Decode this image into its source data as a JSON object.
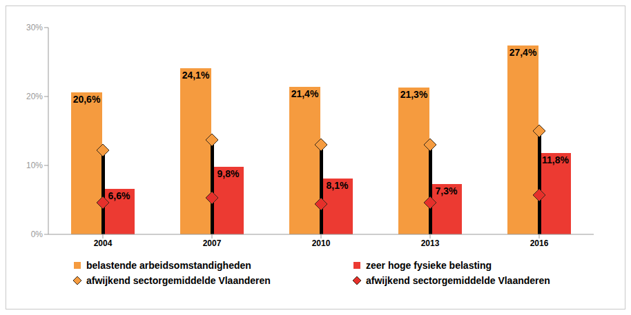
{
  "chart_data": {
    "type": "bar",
    "categories": [
      "2004",
      "2007",
      "2010",
      "2013",
      "2016"
    ],
    "series": [
      {
        "name": "belastende arbeidsomstandigheden",
        "type": "bar",
        "color": "#F59B3F",
        "values": [
          20.6,
          24.1,
          21.4,
          21.3,
          27.4
        ],
        "value_labels": [
          "20,6%",
          "24,1%",
          "21,4%",
          "21,3%",
          "27,4%"
        ]
      },
      {
        "name": "zeer hoge fysieke belasting",
        "type": "bar",
        "color": "#EC3A32",
        "values": [
          6.6,
          9.8,
          8.1,
          7.3,
          11.8
        ],
        "value_labels": [
          "6,6%",
          "9,8%",
          "8,1%",
          "7,3%",
          "11,8%"
        ]
      },
      {
        "name": "afwijkend sectorgemiddelde Vlaanderen",
        "type": "scatter",
        "marker": "diamond",
        "color": "#F59B3F",
        "values": [
          12.2,
          13.7,
          13.0,
          13.0,
          15.0
        ]
      },
      {
        "name": "afwijkend sectorgemiddelde Vlaanderen",
        "type": "scatter",
        "marker": "diamond",
        "color": "#E5302B",
        "values": [
          4.6,
          5.3,
          4.4,
          4.6,
          5.7
        ]
      }
    ],
    "ylim": [
      0,
      30
    ],
    "yticks": [
      {
        "value": 0,
        "label": "0%"
      },
      {
        "value": 10,
        "label": "10%"
      },
      {
        "value": 20,
        "label": "20%"
      },
      {
        "value": 30,
        "label": "30%"
      }
    ],
    "grid": false,
    "data_labels": true,
    "legend": "bottom"
  }
}
